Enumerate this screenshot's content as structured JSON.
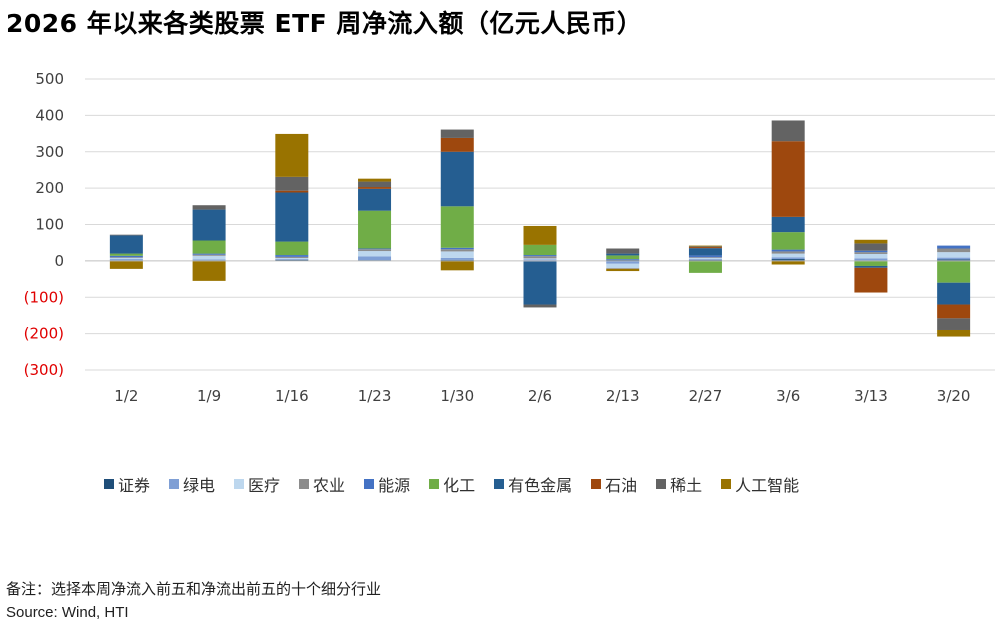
{
  "title": "2026 年以来各类股票 ETF 周净流入额（亿元人民币）",
  "note": "备注：选择本周净流入前五和净流出前五的十个细分行业",
  "source": "Source: Wind, HTI",
  "chart_data": {
    "type": "bar",
    "stacked": true,
    "title": "2026 年以来各类股票 ETF 周净流入额（亿元人民币）",
    "xlabel": "",
    "ylabel": "",
    "ylim": [
      -300,
      500
    ],
    "y_ticks": [
      500,
      400,
      300,
      200,
      100,
      0,
      -100,
      -200,
      -300
    ],
    "y_tick_labels": [
      "500",
      "400",
      "300",
      "200",
      "100",
      "0",
      "(100)",
      "(200)",
      "(300)"
    ],
    "grid": true,
    "legend_position": "bottom",
    "categories": [
      "1/2",
      "1/9",
      "1/16",
      "1/23",
      "1/30",
      "2/6",
      "2/13",
      "2/27",
      "3/6",
      "3/13",
      "3/20"
    ],
    "series": [
      {
        "name": "证券",
        "color": "#1f4e79",
        "values": [
          2,
          2,
          3,
          2,
          3,
          -2,
          3,
          3,
          5,
          2,
          4
        ]
      },
      {
        "name": "绿电",
        "color": "#7f9fd5",
        "values": [
          3,
          2,
          2,
          10,
          5,
          4,
          -8,
          2,
          5,
          5,
          5
        ]
      },
      {
        "name": "医疗",
        "color": "#bdd7ee",
        "values": [
          3,
          10,
          3,
          15,
          18,
          3,
          -12,
          3,
          10,
          12,
          15
        ]
      },
      {
        "name": "农业",
        "color": "#8c8c8c",
        "values": [
          2,
          3,
          3,
          5,
          6,
          6,
          -2,
          2,
          6,
          5,
          10
        ]
      },
      {
        "name": "能源",
        "color": "#4472c4",
        "values": [
          4,
          3,
          5,
          2,
          4,
          3,
          2,
          5,
          5,
          4,
          8
        ]
      },
      {
        "name": "化工",
        "color": "#70ad47",
        "values": [
          6,
          36,
          37,
          104,
          114,
          28,
          10,
          -33,
          48,
          -14,
          -60
        ]
      },
      {
        "name": "有色金属",
        "color": "#255e91",
        "values": [
          50,
          85,
          135,
          60,
          150,
          -118,
          5,
          20,
          42,
          -5,
          -60
        ]
      },
      {
        "name": "石油",
        "color": "#9e480e",
        "values": [
          0,
          0,
          5,
          5,
          38,
          0,
          0,
          3,
          208,
          -68,
          -38
        ]
      },
      {
        "name": "稀土",
        "color": "#636363",
        "values": [
          2,
          12,
          38,
          15,
          23,
          -8,
          14,
          2,
          57,
          20,
          -32
        ]
      },
      {
        "name": "人工智能",
        "color": "#997300",
        "values": [
          -22,
          -55,
          118,
          8,
          -26,
          52,
          -6,
          2,
          -10,
          10,
          -18
        ]
      }
    ]
  }
}
